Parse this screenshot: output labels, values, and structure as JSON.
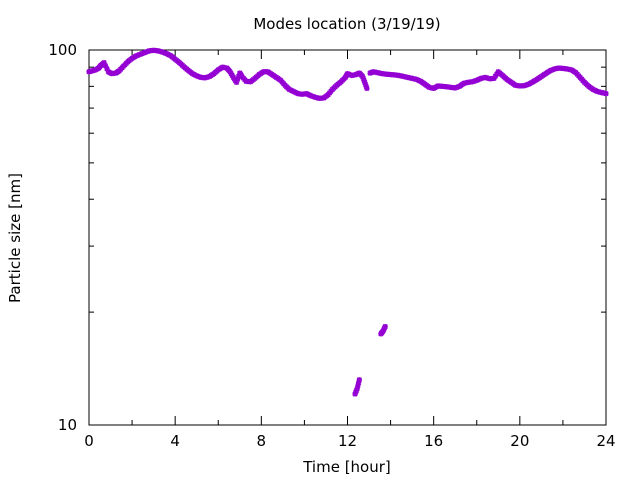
{
  "chart_data": {
    "type": "scatter",
    "title": "Modes location (3/19/19)",
    "xlabel": "Time [hour]",
    "ylabel": "Particle size [nm]",
    "xlim": [
      0,
      24
    ],
    "ylim": [
      10,
      100
    ],
    "yscale": "log",
    "xticks": [
      0,
      4,
      8,
      12,
      16,
      20,
      24
    ],
    "xtick_labels": [
      "0",
      "4",
      "8",
      "12",
      "16",
      "20",
      "24"
    ],
    "yticks": [
      10,
      100
    ],
    "ytick_labels": [
      "10",
      "100"
    ],
    "grid": false,
    "legend": "none",
    "marker_color": "#9400d3",
    "series": [
      {
        "values": [
          [
            0.0,
            87.5
          ],
          [
            0.15,
            88.0
          ],
          [
            0.3,
            88.5
          ],
          [
            0.45,
            89.5
          ],
          [
            0.55,
            91.0
          ],
          [
            0.7,
            92.5
          ],
          [
            0.9,
            87.5
          ],
          [
            1.05,
            86.5
          ],
          [
            1.25,
            86.8
          ],
          [
            1.4,
            88.0
          ],
          [
            1.6,
            90.5
          ],
          [
            1.8,
            93.0
          ],
          [
            2.0,
            95.0
          ],
          [
            2.2,
            96.5
          ],
          [
            2.4,
            97.5
          ],
          [
            2.6,
            98.5
          ],
          [
            2.8,
            99.5
          ],
          [
            3.0,
            99.8
          ],
          [
            3.2,
            99.5
          ],
          [
            3.4,
            98.8
          ],
          [
            3.6,
            97.8
          ],
          [
            3.8,
            96.5
          ],
          [
            4.0,
            94.5
          ],
          [
            4.2,
            92.5
          ],
          [
            4.4,
            90.3
          ],
          [
            4.6,
            88.3
          ],
          [
            4.8,
            86.5
          ],
          [
            5.0,
            85.3
          ],
          [
            5.2,
            84.5
          ],
          [
            5.4,
            84.3
          ],
          [
            5.6,
            85.0
          ],
          [
            5.8,
            86.5
          ],
          [
            6.0,
            88.5
          ],
          [
            6.2,
            90.0
          ],
          [
            6.4,
            89.5
          ],
          [
            6.55,
            87.5
          ],
          [
            6.7,
            84.5
          ],
          [
            6.85,
            82.0
          ],
          [
            7.0,
            86.8
          ],
          [
            7.1,
            85.0
          ],
          [
            7.3,
            82.5
          ],
          [
            7.5,
            82.3
          ],
          [
            7.7,
            84.0
          ],
          [
            7.9,
            86.0
          ],
          [
            8.1,
            87.5
          ],
          [
            8.3,
            87.5
          ],
          [
            8.5,
            86.0
          ],
          [
            8.7,
            84.5
          ],
          [
            8.9,
            83.0
          ],
          [
            9.1,
            80.5
          ],
          [
            9.3,
            78.5
          ],
          [
            9.5,
            77.5
          ],
          [
            9.7,
            76.5
          ],
          [
            9.9,
            76.2
          ],
          [
            10.1,
            76.5
          ],
          [
            10.3,
            75.5
          ],
          [
            10.5,
            74.8
          ],
          [
            10.7,
            74.3
          ],
          [
            10.9,
            74.5
          ],
          [
            11.1,
            76.0
          ],
          [
            11.3,
            78.5
          ],
          [
            11.5,
            80.5
          ],
          [
            11.7,
            82.3
          ],
          [
            11.9,
            84.5
          ],
          [
            12.0,
            86.5
          ],
          [
            12.2,
            85.5
          ],
          [
            12.4,
            86.0
          ],
          [
            12.55,
            86.8
          ],
          [
            12.7,
            85.0
          ],
          [
            12.8,
            82.0
          ],
          [
            12.9,
            79.0
          ],
          [
            13.05,
            86.8
          ],
          [
            13.2,
            87.5
          ],
          [
            13.4,
            87.0
          ],
          [
            13.6,
            86.5
          ],
          [
            13.8,
            86.2
          ],
          [
            14.0,
            86.0
          ],
          [
            14.2,
            85.8
          ],
          [
            14.4,
            85.5
          ],
          [
            14.6,
            85.0
          ],
          [
            14.8,
            84.5
          ],
          [
            15.0,
            84.0
          ],
          [
            15.2,
            83.5
          ],
          [
            15.4,
            82.5
          ],
          [
            15.6,
            81.0
          ],
          [
            15.8,
            79.5
          ],
          [
            16.0,
            79.0
          ],
          [
            16.2,
            80.2
          ],
          [
            16.4,
            80.0
          ],
          [
            16.6,
            79.8
          ],
          [
            16.8,
            79.5
          ],
          [
            17.0,
            79.2
          ],
          [
            17.2,
            80.0
          ],
          [
            17.4,
            81.5
          ],
          [
            17.6,
            82.0
          ],
          [
            17.8,
            82.3
          ],
          [
            18.0,
            83.0
          ],
          [
            18.2,
            84.0
          ],
          [
            18.4,
            84.5
          ],
          [
            18.6,
            83.8
          ],
          [
            18.8,
            84.0
          ],
          [
            19.0,
            87.5
          ],
          [
            19.2,
            85.5
          ],
          [
            19.4,
            83.5
          ],
          [
            19.6,
            82.0
          ],
          [
            19.8,
            80.5
          ],
          [
            20.0,
            80.2
          ],
          [
            20.2,
            80.3
          ],
          [
            20.4,
            81.0
          ],
          [
            20.6,
            82.2
          ],
          [
            20.8,
            83.5
          ],
          [
            21.0,
            85.0
          ],
          [
            21.2,
            86.5
          ],
          [
            21.4,
            88.0
          ],
          [
            21.6,
            89.0
          ],
          [
            21.8,
            89.5
          ],
          [
            22.0,
            89.3
          ],
          [
            22.2,
            89.0
          ],
          [
            22.4,
            88.5
          ],
          [
            22.6,
            87.0
          ],
          [
            22.8,
            84.5
          ],
          [
            23.0,
            82.0
          ],
          [
            23.2,
            80.0
          ],
          [
            23.4,
            78.5
          ],
          [
            23.6,
            77.5
          ],
          [
            23.8,
            77.0
          ],
          [
            24.0,
            76.5
          ],
          [
            12.35,
            12.1
          ],
          [
            12.45,
            12.5
          ],
          [
            12.55,
            13.2
          ],
          [
            13.55,
            17.5
          ],
          [
            13.65,
            17.8
          ],
          [
            13.75,
            18.3
          ]
        ]
      }
    ]
  }
}
